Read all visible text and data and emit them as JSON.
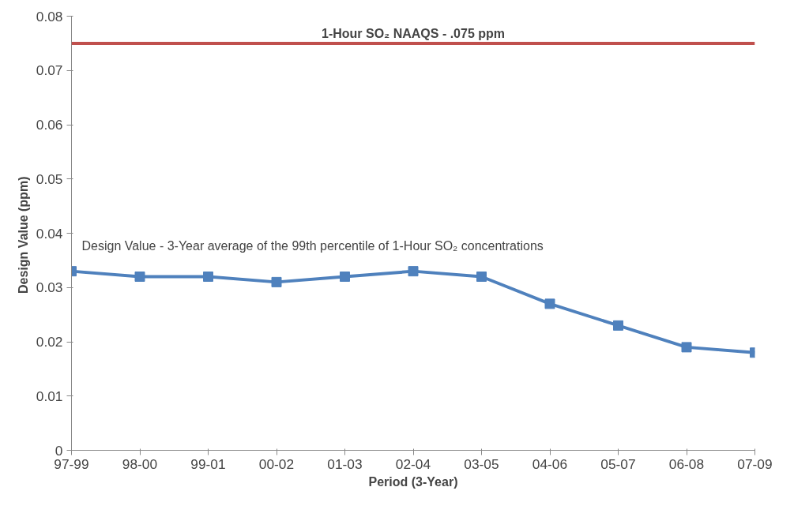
{
  "chart_data": {
    "type": "line",
    "xlabel": "Period (3-Year)",
    "ylabel": "Design Value  (ppm)",
    "categories": [
      "97-99",
      "98-00",
      "99-01",
      "00-02",
      "01-03",
      "02-04",
      "03-05",
      "04-06",
      "05-07",
      "06-08",
      "07-09"
    ],
    "series": [
      {
        "color": "#4f81bd",
        "values": [
          0.033,
          0.032,
          0.032,
          0.031,
          0.032,
          0.033,
          0.032,
          0.027,
          0.023,
          0.019,
          0.018
        ]
      }
    ],
    "ylim": [
      0,
      0.08
    ],
    "yticks": [
      0,
      0.01,
      0.02,
      0.03,
      0.04,
      0.05,
      0.06,
      0.07,
      0.08
    ],
    "ref_lines": [
      {
        "axis": "y",
        "value": 0.075,
        "label": "1-Hour SO₂ NAAQS - .075 ppm",
        "color": "#c0504d"
      }
    ],
    "annotations": [
      "Design Value - 3-Year average of the 99th percentile of 1-Hour SO₂ concentrations"
    ],
    "marker": "square",
    "line_style": "solid",
    "grid": false
  }
}
